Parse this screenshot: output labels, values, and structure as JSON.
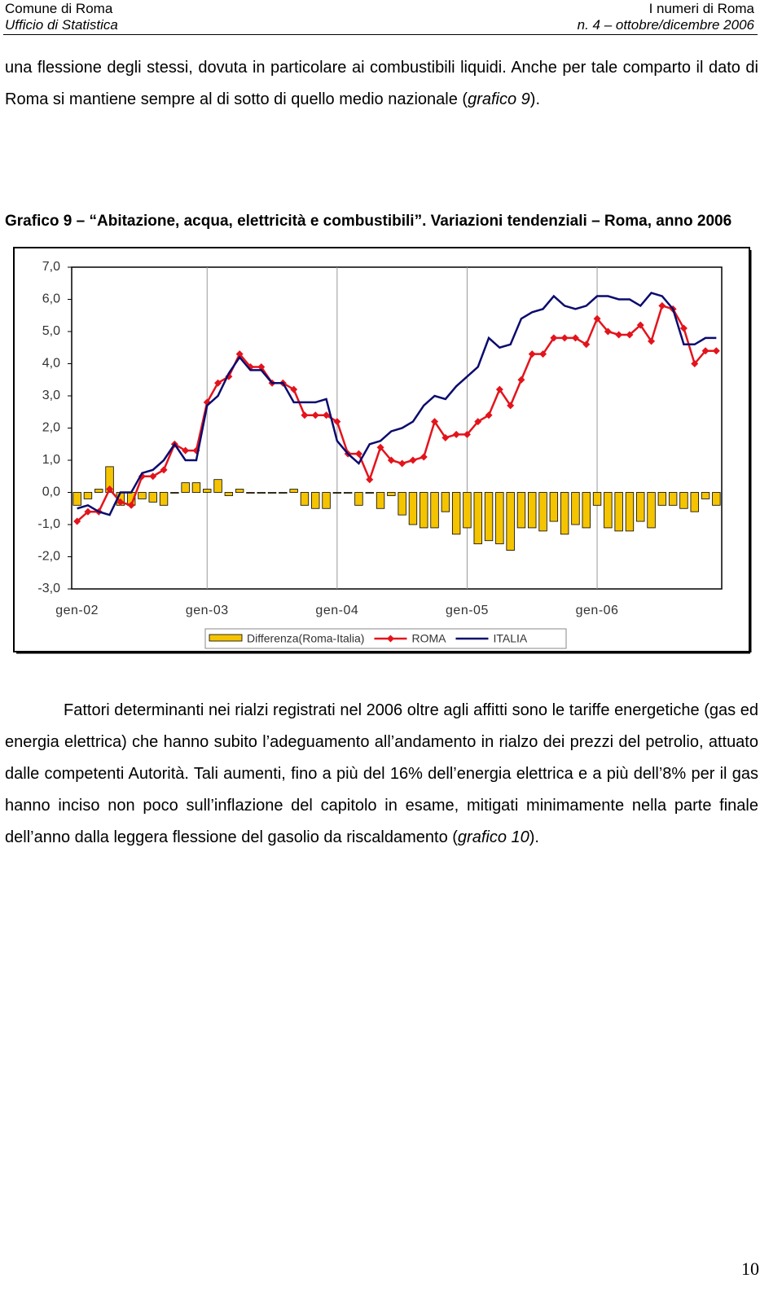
{
  "header": {
    "left_top": "Comune di Roma",
    "left_bottom": "Ufficio di Statistica",
    "right_top": "I numeri di Roma",
    "right_bottom": "n. 4 – ottobre/dicembre 2006"
  },
  "paragraphs": [
    {
      "runs": [
        {
          "text": "una flessione degli stessi, dovuta in particolare ai combustibili liquidi. Anche per tale comparto il dato di Roma si mantiene sempre al di sotto di quello medio nazionale ("
        },
        {
          "text": "grafico 9",
          "italic": true
        },
        {
          "text": ")."
        }
      ]
    },
    {
      "runs": [
        {
          "text": "Fattori determinanti nei rialzi registrati nel 2006 oltre agli affitti sono le tariffe energetiche (gas ed energia elettrica) che hanno subito l’adeguamento all’andamento in rialzo dei prezzi del petrolio, attuato dalle competenti Autorità. Tali aumenti, fino a più del 16% dell’energia elettrica e a più dell’8% per il gas hanno inciso non poco sull’inflazione del capitolo in esame, mitigati minimamente nella parte finale dell’anno dalla leggera flessione del gasolio da riscaldamento ("
        },
        {
          "text": "grafico 10",
          "italic": true
        },
        {
          "text": ")."
        }
      ]
    }
  ],
  "caption": "Grafico 9 – “Abitazione, acqua, elettricità e combustibili”. Variazioni tendenziali – Roma, anno 2006",
  "page_number": "10",
  "chart_data": {
    "type": "combo",
    "categories": [
      "gen-02",
      null,
      null,
      null,
      null,
      null,
      null,
      null,
      null,
      null,
      null,
      null,
      "gen-03",
      null,
      null,
      null,
      null,
      null,
      null,
      null,
      null,
      null,
      null,
      null,
      "gen-04",
      null,
      null,
      null,
      null,
      null,
      null,
      null,
      null,
      null,
      null,
      null,
      "gen-05",
      null,
      null,
      null,
      null,
      null,
      null,
      null,
      null,
      null,
      null,
      null,
      "gen-06",
      null,
      null,
      null,
      null,
      null,
      null,
      null,
      null,
      null,
      null,
      null
    ],
    "series": [
      {
        "name": "Differenza(Roma-Italia)",
        "type": "bar",
        "color": "#f5c400",
        "values": [
          -0.4,
          -0.2,
          0.1,
          0.8,
          -0.4,
          -0.4,
          -0.2,
          -0.3,
          -0.4,
          0.0,
          0.3,
          0.3,
          0.1,
          0.4,
          -0.1,
          0.1,
          0.0,
          0.0,
          0.0,
          0.0,
          0.1,
          -0.4,
          -0.5,
          -0.5,
          0.0,
          0.0,
          -0.4,
          0.0,
          -0.5,
          -0.1,
          -0.7,
          -1.0,
          -1.1,
          -1.1,
          -0.6,
          -1.3,
          -1.1,
          -1.6,
          -1.5,
          -1.6,
          -1.8,
          -1.1,
          -1.1,
          -1.2,
          -0.9,
          -1.3,
          -1.0,
          -1.1,
          -0.4,
          -1.1,
          -1.2,
          -1.2,
          -0.9,
          -1.1,
          -0.4,
          -0.4,
          -0.5,
          -0.6,
          -0.2,
          -0.4
        ]
      },
      {
        "name": "ROMA",
        "type": "line",
        "marker": "diamond",
        "color": "#e3141c",
        "values": [
          -0.9,
          -0.6,
          -0.6,
          0.1,
          -0.3,
          -0.4,
          0.5,
          0.5,
          0.7,
          1.5,
          1.3,
          1.3,
          2.8,
          3.4,
          3.6,
          4.3,
          3.9,
          3.9,
          3.4,
          3.4,
          3.2,
          2.4,
          2.4,
          2.4,
          2.2,
          1.2,
          1.2,
          0.4,
          1.4,
          1.0,
          0.9,
          1.0,
          1.1,
          2.2,
          1.7,
          1.8,
          1.8,
          2.2,
          2.4,
          3.2,
          2.7,
          3.5,
          4.3,
          4.3,
          4.8,
          4.8,
          4.8,
          4.6,
          5.4,
          5.0,
          4.9,
          4.9,
          5.2,
          4.7,
          5.8,
          5.7,
          5.1,
          4.0,
          4.4,
          4.4
        ]
      },
      {
        "name": "ITALIA",
        "type": "line",
        "color": "#0b0b6e",
        "values": [
          -0.5,
          -0.4,
          -0.6,
          -0.7,
          0.0,
          0.0,
          0.6,
          0.7,
          1.0,
          1.5,
          1.0,
          1.0,
          2.7,
          3.0,
          3.7,
          4.2,
          3.8,
          3.8,
          3.4,
          3.4,
          2.8,
          2.8,
          2.8,
          2.9,
          1.6,
          1.2,
          0.9,
          1.5,
          1.6,
          1.9,
          2.0,
          2.2,
          2.7,
          3.0,
          2.9,
          3.3,
          3.6,
          3.9,
          4.8,
          4.5,
          4.6,
          5.4,
          5.6,
          5.7,
          6.1,
          5.8,
          5.7,
          5.8,
          6.1,
          6.1,
          6.0,
          6.0,
          5.8,
          6.2,
          6.1,
          5.7,
          4.6,
          4.6,
          4.8,
          4.8
        ]
      }
    ],
    "ylim": [
      -3,
      7
    ],
    "yticks": [
      {
        "value": -3,
        "label": "-3,0"
      },
      {
        "value": -2,
        "label": "-2,0"
      },
      {
        "value": -1,
        "label": "-1,0"
      },
      {
        "value": 0,
        "label": "0,0"
      },
      {
        "value": 1,
        "label": "1,0"
      },
      {
        "value": 2,
        "label": "2,0"
      },
      {
        "value": 3,
        "label": "3,0"
      },
      {
        "value": 4,
        "label": "4,0"
      },
      {
        "value": 5,
        "label": "5,0"
      },
      {
        "value": 6,
        "label": "6,0"
      },
      {
        "value": 7,
        "label": "7,0"
      }
    ],
    "xgrid": true,
    "legend": "bottom"
  }
}
